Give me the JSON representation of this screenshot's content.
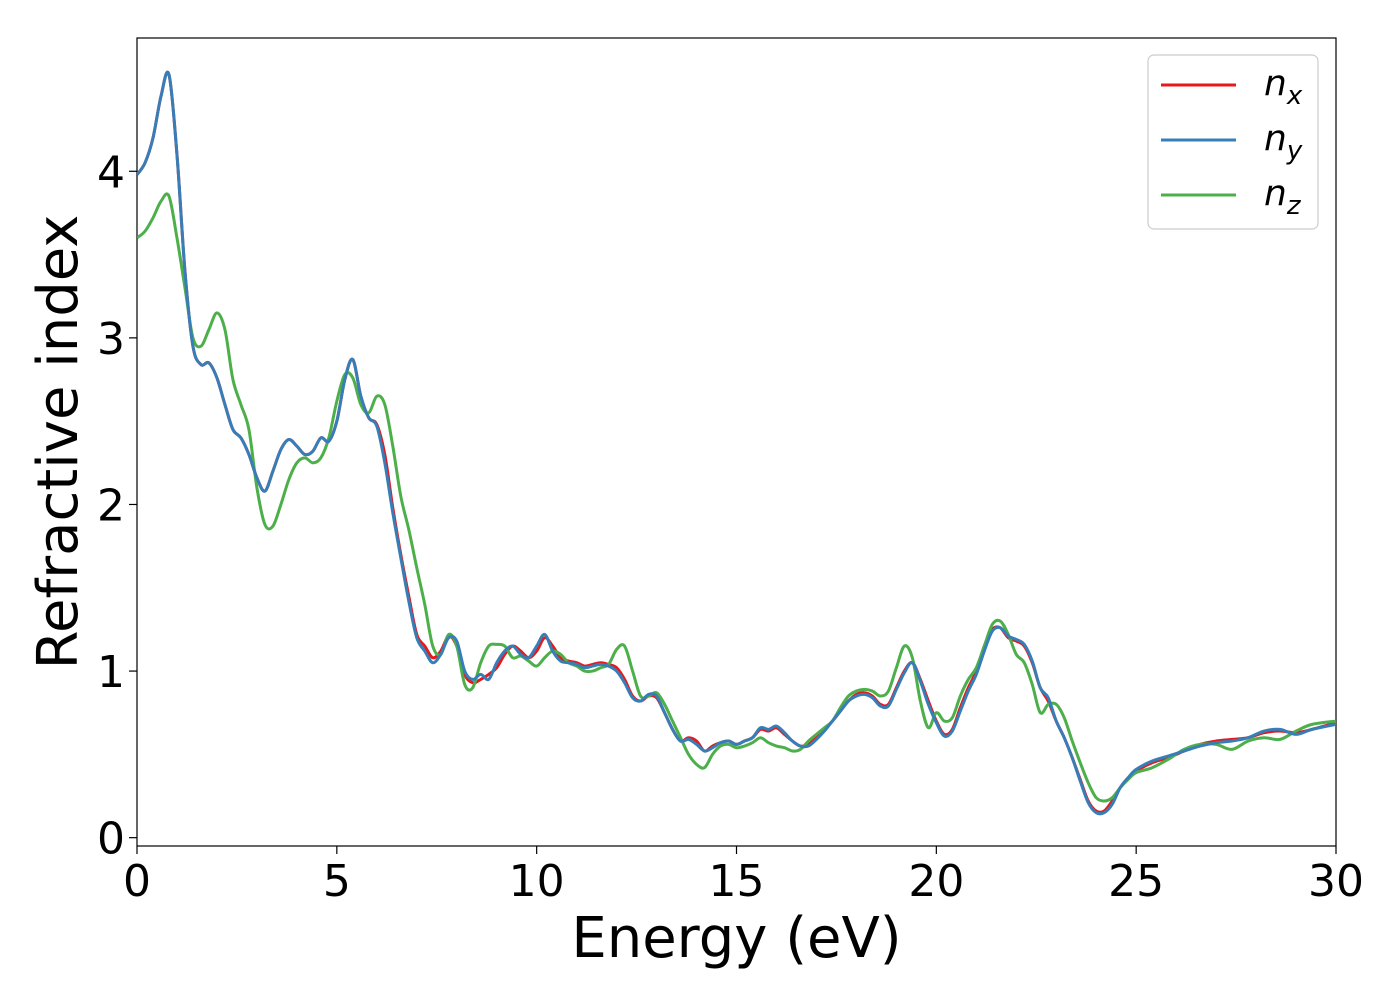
{
  "chart_data": {
    "type": "line",
    "xlabel": "Energy (eV)",
    "ylabel": "Refractive index",
    "xlim": [
      0,
      30
    ],
    "ylim": [
      -0.05,
      4.8
    ],
    "xticks": [
      0,
      5,
      10,
      15,
      20,
      25,
      30
    ],
    "yticks": [
      0,
      1,
      2,
      3,
      4
    ],
    "grid": false,
    "legend_position": "top-right",
    "series": [
      {
        "name": "n_x",
        "legend_base": "n",
        "legend_sub": "x",
        "color": "#e41a1c",
        "x": [
          0,
          0.2,
          0.4,
          0.6,
          0.8,
          1.0,
          1.2,
          1.4,
          1.6,
          1.8,
          2.0,
          2.2,
          2.4,
          2.6,
          2.8,
          3.0,
          3.2,
          3.4,
          3.6,
          3.8,
          4.0,
          4.2,
          4.4,
          4.6,
          4.8,
          5.0,
          5.2,
          5.4,
          5.6,
          5.8,
          6.0,
          6.2,
          6.4,
          6.6,
          6.8,
          7.0,
          7.2,
          7.4,
          7.6,
          7.8,
          8.0,
          8.2,
          8.4,
          8.6,
          8.8,
          9.0,
          9.2,
          9.4,
          9.6,
          9.8,
          10.0,
          10.2,
          10.4,
          10.6,
          10.8,
          11.0,
          11.2,
          11.4,
          11.6,
          11.8,
          12.0,
          12.2,
          12.4,
          12.6,
          12.8,
          13.0,
          13.2,
          13.4,
          13.6,
          13.8,
          14.0,
          14.2,
          14.4,
          14.6,
          14.8,
          15.0,
          15.2,
          15.4,
          15.6,
          15.8,
          16.0,
          16.2,
          16.4,
          16.6,
          16.8,
          17.0,
          17.2,
          17.4,
          17.6,
          17.8,
          18.0,
          18.2,
          18.4,
          18.6,
          18.8,
          19.0,
          19.2,
          19.4,
          19.6,
          19.8,
          20.0,
          20.2,
          20.4,
          20.6,
          20.8,
          21.0,
          21.2,
          21.4,
          21.6,
          21.8,
          22.0,
          22.2,
          22.4,
          22.6,
          22.8,
          23.0,
          23.2,
          23.4,
          23.6,
          23.8,
          24.0,
          24.2,
          24.4,
          24.6,
          24.8,
          25.0,
          25.4,
          25.8,
          26.2,
          26.6,
          27.0,
          27.4,
          27.8,
          28.2,
          28.6,
          29.0,
          29.4,
          30.0
        ],
        "y": [
          3.98,
          4.05,
          4.2,
          4.45,
          4.58,
          4.1,
          3.4,
          2.95,
          2.84,
          2.85,
          2.76,
          2.6,
          2.45,
          2.4,
          2.3,
          2.16,
          2.08,
          2.2,
          2.33,
          2.39,
          2.35,
          2.3,
          2.32,
          2.4,
          2.38,
          2.5,
          2.75,
          2.87,
          2.65,
          2.52,
          2.48,
          2.3,
          1.98,
          1.7,
          1.45,
          1.22,
          1.15,
          1.08,
          1.12,
          1.21,
          1.15,
          0.98,
          0.93,
          0.95,
          0.98,
          1.02,
          1.1,
          1.15,
          1.12,
          1.08,
          1.12,
          1.2,
          1.15,
          1.08,
          1.06,
          1.05,
          1.03,
          1.04,
          1.05,
          1.04,
          1.02,
          0.95,
          0.85,
          0.82,
          0.85,
          0.84,
          0.75,
          0.65,
          0.58,
          0.6,
          0.58,
          0.52,
          0.55,
          0.57,
          0.58,
          0.56,
          0.58,
          0.6,
          0.65,
          0.64,
          0.66,
          0.62,
          0.58,
          0.55,
          0.56,
          0.6,
          0.65,
          0.7,
          0.76,
          0.82,
          0.86,
          0.87,
          0.85,
          0.8,
          0.8,
          0.9,
          1.0,
          1.05,
          0.95,
          0.82,
          0.7,
          0.62,
          0.65,
          0.78,
          0.9,
          1.0,
          1.15,
          1.25,
          1.26,
          1.2,
          1.18,
          1.15,
          1.05,
          0.9,
          0.82,
          0.7,
          0.6,
          0.48,
          0.35,
          0.22,
          0.16,
          0.16,
          0.22,
          0.3,
          0.36,
          0.4,
          0.45,
          0.48,
          0.52,
          0.56,
          0.58,
          0.59,
          0.6,
          0.63,
          0.64,
          0.63,
          0.65,
          0.69
        ]
      },
      {
        "name": "n_y",
        "legend_base": "n",
        "legend_sub": "y",
        "color": "#377eb8",
        "x": [
          0,
          0.2,
          0.4,
          0.6,
          0.8,
          1.0,
          1.2,
          1.4,
          1.6,
          1.8,
          2.0,
          2.2,
          2.4,
          2.6,
          2.8,
          3.0,
          3.2,
          3.4,
          3.6,
          3.8,
          4.0,
          4.2,
          4.4,
          4.6,
          4.8,
          5.0,
          5.2,
          5.4,
          5.6,
          5.8,
          6.0,
          6.2,
          6.4,
          6.6,
          6.8,
          7.0,
          7.2,
          7.4,
          7.6,
          7.8,
          8.0,
          8.2,
          8.4,
          8.6,
          8.8,
          9.0,
          9.2,
          9.4,
          9.6,
          9.8,
          10.0,
          10.2,
          10.4,
          10.6,
          10.8,
          11.0,
          11.2,
          11.4,
          11.6,
          11.8,
          12.0,
          12.2,
          12.4,
          12.6,
          12.8,
          13.0,
          13.2,
          13.4,
          13.6,
          13.8,
          14.0,
          14.2,
          14.4,
          14.6,
          14.8,
          15.0,
          15.2,
          15.4,
          15.6,
          15.8,
          16.0,
          16.2,
          16.4,
          16.6,
          16.8,
          17.0,
          17.2,
          17.4,
          17.6,
          17.8,
          18.0,
          18.2,
          18.4,
          18.6,
          18.8,
          19.0,
          19.2,
          19.4,
          19.6,
          19.8,
          20.0,
          20.2,
          20.4,
          20.6,
          20.8,
          21.0,
          21.2,
          21.4,
          21.6,
          21.8,
          22.0,
          22.2,
          22.4,
          22.6,
          22.8,
          23.0,
          23.2,
          23.4,
          23.6,
          23.8,
          24.0,
          24.2,
          24.4,
          24.6,
          24.8,
          25.0,
          25.4,
          25.8,
          26.2,
          26.6,
          27.0,
          27.4,
          27.8,
          28.2,
          28.6,
          29.0,
          29.4,
          30.0
        ],
        "y": [
          3.98,
          4.05,
          4.2,
          4.45,
          4.58,
          4.1,
          3.4,
          2.95,
          2.84,
          2.85,
          2.76,
          2.6,
          2.45,
          2.4,
          2.3,
          2.16,
          2.08,
          2.2,
          2.33,
          2.39,
          2.35,
          2.3,
          2.32,
          2.4,
          2.38,
          2.5,
          2.75,
          2.87,
          2.65,
          2.52,
          2.47,
          2.25,
          1.95,
          1.68,
          1.42,
          1.2,
          1.12,
          1.05,
          1.1,
          1.2,
          1.18,
          1.0,
          0.95,
          0.98,
          0.95,
          1.05,
          1.12,
          1.15,
          1.1,
          1.08,
          1.15,
          1.22,
          1.12,
          1.06,
          1.05,
          1.04,
          1.02,
          1.03,
          1.04,
          1.03,
          1.0,
          0.93,
          0.84,
          0.82,
          0.86,
          0.85,
          0.75,
          0.65,
          0.58,
          0.59,
          0.56,
          0.52,
          0.54,
          0.57,
          0.58,
          0.56,
          0.58,
          0.6,
          0.66,
          0.65,
          0.67,
          0.63,
          0.58,
          0.55,
          0.55,
          0.59,
          0.64,
          0.7,
          0.76,
          0.82,
          0.85,
          0.86,
          0.84,
          0.79,
          0.79,
          0.89,
          0.99,
          1.05,
          0.94,
          0.8,
          0.69,
          0.61,
          0.64,
          0.76,
          0.88,
          0.98,
          1.12,
          1.24,
          1.26,
          1.21,
          1.19,
          1.16,
          1.06,
          0.9,
          0.84,
          0.7,
          0.6,
          0.48,
          0.34,
          0.21,
          0.15,
          0.15,
          0.2,
          0.3,
          0.36,
          0.41,
          0.46,
          0.49,
          0.52,
          0.55,
          0.57,
          0.58,
          0.6,
          0.64,
          0.65,
          0.62,
          0.65,
          0.68
        ]
      },
      {
        "name": "n_z",
        "legend_base": "n",
        "legend_sub": "z",
        "color": "#4daf4a",
        "x": [
          0,
          0.2,
          0.4,
          0.6,
          0.8,
          1.0,
          1.2,
          1.4,
          1.6,
          1.8,
          2.0,
          2.2,
          2.4,
          2.6,
          2.8,
          3.0,
          3.2,
          3.4,
          3.6,
          3.8,
          4.0,
          4.2,
          4.4,
          4.6,
          4.8,
          5.0,
          5.2,
          5.4,
          5.6,
          5.8,
          6.0,
          6.2,
          6.4,
          6.6,
          6.8,
          7.0,
          7.2,
          7.4,
          7.6,
          7.8,
          8.0,
          8.2,
          8.4,
          8.6,
          8.8,
          9.0,
          9.2,
          9.4,
          9.6,
          9.8,
          10.0,
          10.2,
          10.4,
          10.6,
          10.8,
          11.0,
          11.2,
          11.4,
          11.6,
          11.8,
          12.0,
          12.2,
          12.4,
          12.6,
          12.8,
          13.0,
          13.2,
          13.4,
          13.6,
          13.8,
          14.0,
          14.2,
          14.4,
          14.6,
          14.8,
          15.0,
          15.2,
          15.4,
          15.6,
          15.8,
          16.0,
          16.2,
          16.4,
          16.6,
          16.8,
          17.0,
          17.2,
          17.4,
          17.6,
          17.8,
          18.0,
          18.2,
          18.4,
          18.6,
          18.8,
          19.0,
          19.2,
          19.4,
          19.6,
          19.8,
          20.0,
          20.2,
          20.4,
          20.6,
          20.8,
          21.0,
          21.2,
          21.4,
          21.6,
          21.8,
          22.0,
          22.2,
          22.4,
          22.6,
          22.8,
          23.0,
          23.2,
          23.4,
          23.6,
          23.8,
          24.0,
          24.2,
          24.4,
          24.6,
          24.8,
          25.0,
          25.4,
          25.8,
          26.2,
          26.6,
          27.0,
          27.4,
          27.8,
          28.2,
          28.6,
          29.0,
          29.4,
          30.0
        ],
        "y": [
          3.6,
          3.64,
          3.72,
          3.82,
          3.85,
          3.6,
          3.3,
          3.0,
          2.95,
          3.05,
          3.15,
          3.05,
          2.75,
          2.6,
          2.45,
          2.1,
          1.88,
          1.87,
          2.0,
          2.15,
          2.25,
          2.28,
          2.25,
          2.28,
          2.4,
          2.62,
          2.78,
          2.76,
          2.6,
          2.55,
          2.65,
          2.6,
          2.35,
          2.05,
          1.85,
          1.62,
          1.4,
          1.15,
          1.1,
          1.22,
          1.15,
          0.92,
          0.9,
          1.05,
          1.15,
          1.16,
          1.15,
          1.08,
          1.09,
          1.06,
          1.03,
          1.08,
          1.12,
          1.1,
          1.05,
          1.03,
          1.0,
          1.0,
          1.02,
          1.04,
          1.13,
          1.15,
          1.0,
          0.85,
          0.85,
          0.87,
          0.8,
          0.7,
          0.6,
          0.5,
          0.44,
          0.42,
          0.5,
          0.55,
          0.56,
          0.54,
          0.55,
          0.57,
          0.6,
          0.57,
          0.55,
          0.54,
          0.52,
          0.53,
          0.58,
          0.62,
          0.66,
          0.7,
          0.78,
          0.85,
          0.88,
          0.89,
          0.88,
          0.85,
          0.88,
          1.02,
          1.15,
          1.08,
          0.82,
          0.66,
          0.75,
          0.7,
          0.72,
          0.85,
          0.95,
          1.02,
          1.15,
          1.28,
          1.3,
          1.22,
          1.1,
          1.05,
          0.92,
          0.75,
          0.8,
          0.8,
          0.72,
          0.58,
          0.45,
          0.33,
          0.24,
          0.22,
          0.24,
          0.3,
          0.35,
          0.39,
          0.42,
          0.47,
          0.53,
          0.56,
          0.56,
          0.53,
          0.58,
          0.6,
          0.59,
          0.64,
          0.68,
          0.7
        ]
      }
    ]
  }
}
